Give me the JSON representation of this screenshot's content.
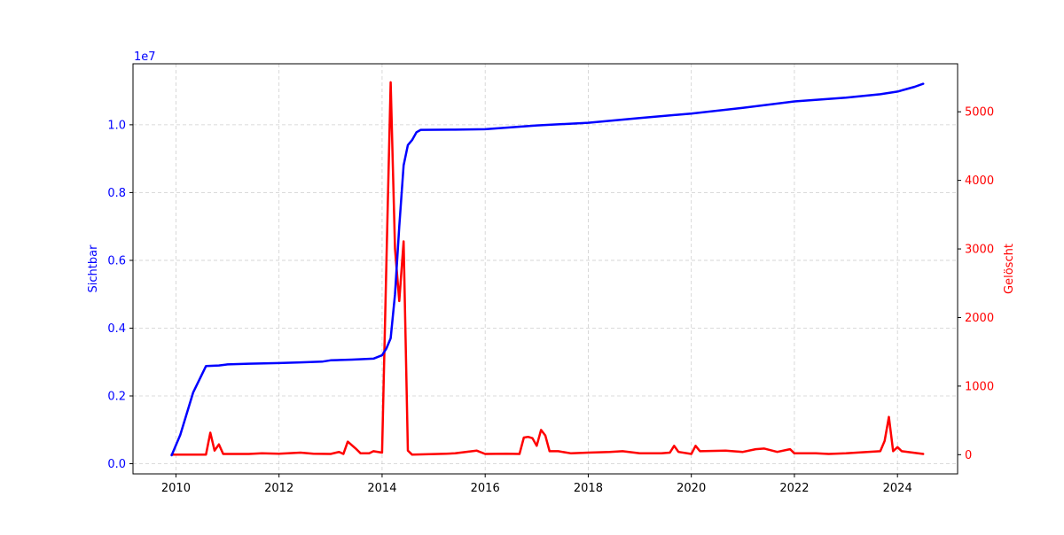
{
  "chart_data": {
    "type": "line",
    "title": "",
    "xlabel": "",
    "x_ticks": [
      "2010",
      "2012",
      "2014",
      "2016",
      "2018",
      "2020",
      "2022",
      "2024"
    ],
    "xlim": [
      "2009-03",
      "2025-03"
    ],
    "grid": true,
    "left_axis": {
      "label": "Sichtbar",
      "offset_text": "1e7",
      "multiplier": 10000000,
      "ticks": [
        "0.0",
        "0.2",
        "0.4",
        "0.6",
        "0.8",
        "1.0"
      ],
      "tick_values": [
        0,
        2000000,
        4000000,
        6000000,
        8000000,
        10000000
      ],
      "ylim": [
        -300000,
        11800000
      ],
      "color": "#0000ff"
    },
    "right_axis": {
      "label": "Gelöscht",
      "ticks": [
        "0",
        "1000",
        "2000",
        "3000",
        "4000",
        "5000"
      ],
      "tick_values": [
        0,
        1000,
        2000,
        3000,
        4000,
        5000
      ],
      "ylim": [
        -280,
        5700
      ],
      "color": "#ff0000"
    },
    "series": [
      {
        "name": "Sichtbar",
        "axis": "left",
        "color": "#0000ff",
        "points": [
          [
            "2009-12",
            250000
          ],
          [
            "2010-02",
            850000
          ],
          [
            "2010-05",
            2100000
          ],
          [
            "2010-08",
            2880000
          ],
          [
            "2010-11",
            2900000
          ],
          [
            "2011-01",
            2930000
          ],
          [
            "2011-06",
            2950000
          ],
          [
            "2012-01",
            2970000
          ],
          [
            "2012-06",
            2990000
          ],
          [
            "2012-11",
            3010000
          ],
          [
            "2013-01",
            3050000
          ],
          [
            "2013-06",
            3070000
          ],
          [
            "2013-11",
            3100000
          ],
          [
            "2014-01",
            3200000
          ],
          [
            "2014-02",
            3400000
          ],
          [
            "2014-03",
            3700000
          ],
          [
            "2014-04",
            5000000
          ],
          [
            "2014-05",
            7000000
          ],
          [
            "2014-06",
            8800000
          ],
          [
            "2014-07",
            9400000
          ],
          [
            "2014-08",
            9550000
          ],
          [
            "2014-09",
            9780000
          ],
          [
            "2014-10",
            9850000
          ],
          [
            "2015-06",
            9855000
          ],
          [
            "2016-01",
            9870000
          ],
          [
            "2017-01",
            9980000
          ],
          [
            "2018-01",
            10060000
          ],
          [
            "2019-01",
            10200000
          ],
          [
            "2020-01",
            10330000
          ],
          [
            "2021-01",
            10500000
          ],
          [
            "2022-01",
            10690000
          ],
          [
            "2023-01",
            10800000
          ],
          [
            "2023-09",
            10900000
          ],
          [
            "2024-01",
            10980000
          ],
          [
            "2024-05",
            11120000
          ],
          [
            "2024-07",
            11210000
          ]
        ]
      },
      {
        "name": "Gelöscht",
        "axis": "right",
        "color": "#ff0000",
        "points": [
          [
            "2009-12",
            0
          ],
          [
            "2010-08",
            0
          ],
          [
            "2010-09",
            320
          ],
          [
            "2010-10",
            60
          ],
          [
            "2010-11",
            150
          ],
          [
            "2010-12",
            10
          ],
          [
            "2011-06",
            10
          ],
          [
            "2011-09",
            20
          ],
          [
            "2012-01",
            15
          ],
          [
            "2012-06",
            30
          ],
          [
            "2012-09",
            15
          ],
          [
            "2013-01",
            10
          ],
          [
            "2013-03",
            40
          ],
          [
            "2013-04",
            10
          ],
          [
            "2013-05",
            190
          ],
          [
            "2013-07",
            80
          ],
          [
            "2013-08",
            20
          ],
          [
            "2013-10",
            20
          ],
          [
            "2013-11",
            50
          ],
          [
            "2014-01",
            30
          ],
          [
            "2014-02",
            2800
          ],
          [
            "2014-03",
            5430
          ],
          [
            "2014-04",
            3000
          ],
          [
            "2014-05",
            2240
          ],
          [
            "2014-06",
            3110
          ],
          [
            "2014-07",
            60
          ],
          [
            "2014-08",
            0
          ],
          [
            "2015-04",
            15
          ],
          [
            "2015-06",
            20
          ],
          [
            "2015-11",
            60
          ],
          [
            "2016-01",
            10
          ],
          [
            "2016-06",
            15
          ],
          [
            "2016-09",
            10
          ],
          [
            "2016-10",
            250
          ],
          [
            "2016-11",
            260
          ],
          [
            "2016-12",
            240
          ],
          [
            "2017-01",
            130
          ],
          [
            "2017-02",
            360
          ],
          [
            "2017-03",
            280
          ],
          [
            "2017-04",
            50
          ],
          [
            "2017-06",
            50
          ],
          [
            "2017-09",
            20
          ],
          [
            "2018-01",
            30
          ],
          [
            "2018-06",
            40
          ],
          [
            "2018-09",
            50
          ],
          [
            "2019-01",
            20
          ],
          [
            "2019-06",
            20
          ],
          [
            "2019-08",
            30
          ],
          [
            "2019-09",
            130
          ],
          [
            "2019-10",
            40
          ],
          [
            "2020-01",
            10
          ],
          [
            "2020-02",
            130
          ],
          [
            "2020-03",
            50
          ],
          [
            "2020-09",
            60
          ],
          [
            "2021-01",
            40
          ],
          [
            "2021-04",
            80
          ],
          [
            "2021-06",
            90
          ],
          [
            "2021-09",
            40
          ],
          [
            "2021-12",
            80
          ],
          [
            "2022-01",
            20
          ],
          [
            "2022-06",
            20
          ],
          [
            "2022-09",
            10
          ],
          [
            "2023-01",
            20
          ],
          [
            "2023-06",
            40
          ],
          [
            "2023-09",
            50
          ],
          [
            "2023-10",
            200
          ],
          [
            "2023-11",
            550
          ],
          [
            "2023-12",
            50
          ],
          [
            "2024-01",
            110
          ],
          [
            "2024-02",
            50
          ],
          [
            "2024-07",
            10
          ]
        ]
      }
    ]
  }
}
